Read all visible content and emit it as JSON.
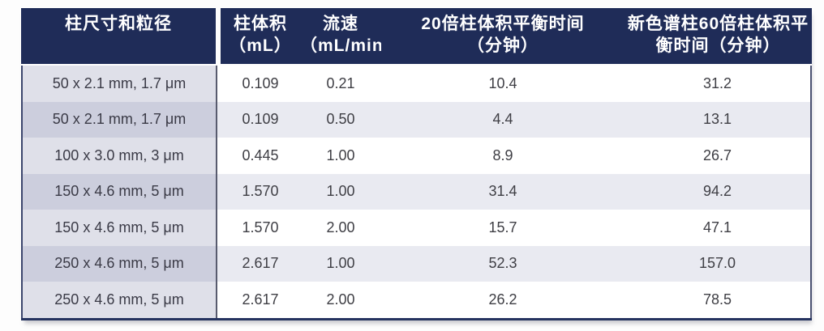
{
  "table": {
    "columns": [
      {
        "line1": "柱尺寸和粒径",
        "line2": ""
      },
      {
        "line1": "柱体积",
        "line2": "（mL）"
      },
      {
        "line1": "流速",
        "line2": "（mL/min）"
      },
      {
        "line1": "20倍柱体积平衡时间",
        "line2": "（分钟）"
      },
      {
        "line1": "新色谱柱60倍柱体积平",
        "line2": "衡时间（分钟）"
      }
    ],
    "rows": [
      [
        "50 x 2.1 mm, 1.7 μm",
        "0.109",
        "0.21",
        "10.4",
        "31.2"
      ],
      [
        "50 x 2.1 mm, 1.7 μm",
        "0.109",
        "0.50",
        "4.4",
        "13.1"
      ],
      [
        "100 x 3.0 mm, 3 μm",
        "0.445",
        "1.00",
        "8.9",
        "26.7"
      ],
      [
        "150 x 4.6 mm, 5 μm",
        "1.570",
        "1.00",
        "31.4",
        "94.2"
      ],
      [
        "150 x 4.6 mm, 5 μm",
        "1.570",
        "2.00",
        "15.7",
        "47.1"
      ],
      [
        "250 x 4.6 mm, 5 μm",
        "2.617",
        "1.00",
        "52.3",
        "157.0"
      ],
      [
        "250 x 4.6 mm, 5 μm",
        "2.617",
        "2.00",
        "26.2",
        "78.5"
      ]
    ]
  },
  "colors": {
    "header_bg": "#1f2c58",
    "header_text": "#ffffff",
    "col1_row_light": "#dfe0e9",
    "col1_row_dark": "#cccedd",
    "body_row_light": "#ffffff",
    "body_row_dark": "#e9eaf1",
    "body_text": "#3e3e44",
    "divider_line": "#585b6e",
    "outer_border": "#25335f"
  }
}
